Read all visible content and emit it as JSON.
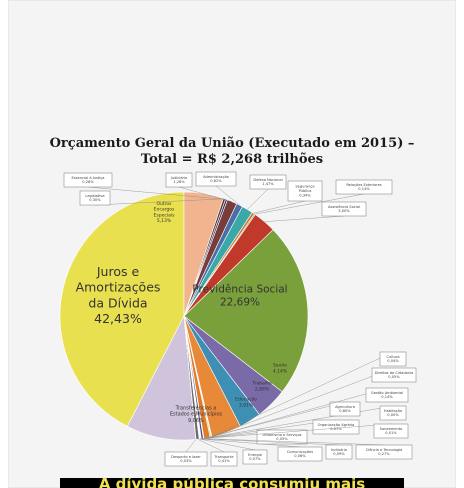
{
  "chart_data": {
    "type": "pie",
    "title": "Orçamento Geral da União (Executado em 2015) –",
    "subtitle": "Total = R$ 2,268 trilhões",
    "slices": [
      {
        "label": "Juros e Amortizações da Dívida",
        "value": 42.43,
        "value_text": "42,43%",
        "color": "#e9e04f"
      },
      {
        "label": "Transferências a Estados e Municípios",
        "value": 9.06,
        "value_text": "9,06%",
        "color": "#cfc4dc"
      },
      {
        "label": "Desporto e lazer",
        "value": 0.03,
        "value_text": "0,03%",
        "color": "#b7b7b7"
      },
      {
        "label": "Transporte",
        "value": 0.41,
        "value_text": "0,41%",
        "color": "#6b6b6b"
      },
      {
        "label": "Energia",
        "value": 0.07,
        "value_text": "0,07%",
        "color": "#a0a0a0"
      },
      {
        "label": "Comunicações",
        "value": 0.06,
        "value_text": "0,06%",
        "color": "#5f8fc7"
      },
      {
        "label": "Urbanismo e Serviços",
        "value": 0.05,
        "value_text": "0,05%",
        "color": "#c9a2a2"
      },
      {
        "label": "Indústria",
        "value": 0.09,
        "value_text": "0,09%",
        "color": "#d36a6a"
      },
      {
        "label": "Ciência e Tecnologia",
        "value": 0.27,
        "value_text": "0,27%",
        "color": "#4b4b8a"
      },
      {
        "label": "Organização Agrária",
        "value": 0.07,
        "value_text": "0,07%",
        "color": "#7a9e3a"
      },
      {
        "label": "Saneamento",
        "value": 0.01,
        "value_text": "0,01%",
        "color": "#9e7a3a"
      },
      {
        "label": "Habitação",
        "value": 0.0,
        "value_text": "0,00%",
        "color": "#3a9e9e"
      },
      {
        "label": "Agricultura",
        "value": 0.8,
        "value_text": "0,80%",
        "color": "#e07b2b"
      },
      {
        "label": "Gestão Ambiental",
        "value": 0.14,
        "value_text": "0,14%",
        "color": "#8fb34a"
      },
      {
        "label": "Cultura",
        "value": 0.04,
        "value_text": "0,04%",
        "color": "#b36a2b"
      },
      {
        "label": "Direitos da Cidadania",
        "value": 0.05,
        "value_text": "0,05%",
        "color": "#6a4b8a"
      },
      {
        "label": "Educação",
        "value": 3.91,
        "value_text": "3,91%",
        "color": "#e8893a"
      },
      {
        "label": "Trabalho",
        "value": 2.88,
        "value_text": "2,88%",
        "color": "#3d8fb3"
      },
      {
        "label": "Saúde",
        "value": 4.14,
        "value_text": "4,14%",
        "color": "#7a6aa8"
      },
      {
        "label": "Previdência Social",
        "value": 22.69,
        "value_text": "22,69%",
        "color": "#7aa03c"
      },
      {
        "label": "Assistência Social",
        "value": 3.0,
        "value_text": "3,00%",
        "color": "#c0392b"
      },
      {
        "label": "Relações Exteriores",
        "value": 0.14,
        "value_text": "0,14%",
        "color": "#2f7d32"
      },
      {
        "label": "Segurança Pública",
        "value": 0.34,
        "value_text": "0,34%",
        "color": "#d07a2a"
      },
      {
        "label": "Defesa Nacional",
        "value": 1.47,
        "value_text": "1,47%",
        "color": "#3aa8a8"
      },
      {
        "label": "Administração",
        "value": 0.82,
        "value_text": "0,82%",
        "color": "#4a6fa5"
      },
      {
        "label": "Judiciária",
        "value": 1.28,
        "value_text": "1,28%",
        "color": "#7a3b3b"
      },
      {
        "label": "Essencial à Justiça",
        "value": 0.26,
        "value_text": "0,26%",
        "color": "#3b3b5c"
      },
      {
        "label": "Legislativa",
        "value": 0.3,
        "value_text": "0,30%",
        "color": "#5c3b3b"
      },
      {
        "label": "Outros Encargos Especiais",
        "value": 5.13,
        "value_text": "5,13%",
        "color": "#f2b48e"
      }
    ]
  },
  "caption": "A dívida pública consumiu mais"
}
